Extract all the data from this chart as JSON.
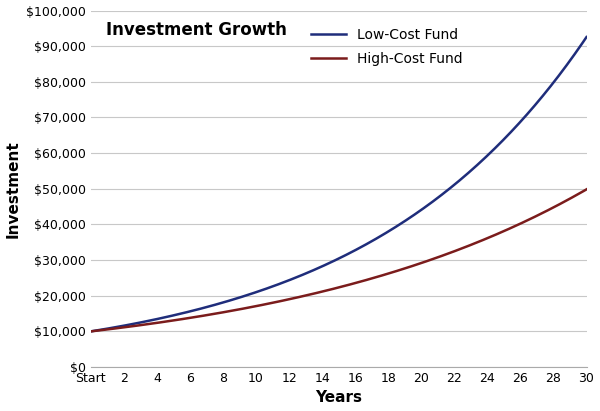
{
  "title": "Investment Growth",
  "xlabel": "Years",
  "ylabel": "Investment",
  "low_cost_label": "Low-Cost Fund",
  "high_cost_label": "High-Cost Fund",
  "low_cost_color": "#1f2d7b",
  "high_cost_color": "#7b1c1c",
  "initial_investment": 10000,
  "low_cost_rate": 0.077,
  "high_cost_rate": 0.055,
  "years": 30,
  "xlim": [
    0,
    30
  ],
  "ylim": [
    0,
    100000
  ],
  "ytick_step": 10000,
  "xtick_labels": [
    "Start",
    "2",
    "4",
    "6",
    "8",
    "10",
    "12",
    "14",
    "16",
    "18",
    "20",
    "22",
    "24",
    "26",
    "28",
    "30"
  ],
  "xtick_positions": [
    0,
    2,
    4,
    6,
    8,
    10,
    12,
    14,
    16,
    18,
    20,
    22,
    24,
    26,
    28,
    30
  ],
  "background_color": "#ffffff",
  "grid_color": "#c8c8c8",
  "line_width": 1.8,
  "legend_fontsize": 10,
  "title_fontsize": 12,
  "axis_label_fontsize": 11,
  "tick_fontsize": 9
}
